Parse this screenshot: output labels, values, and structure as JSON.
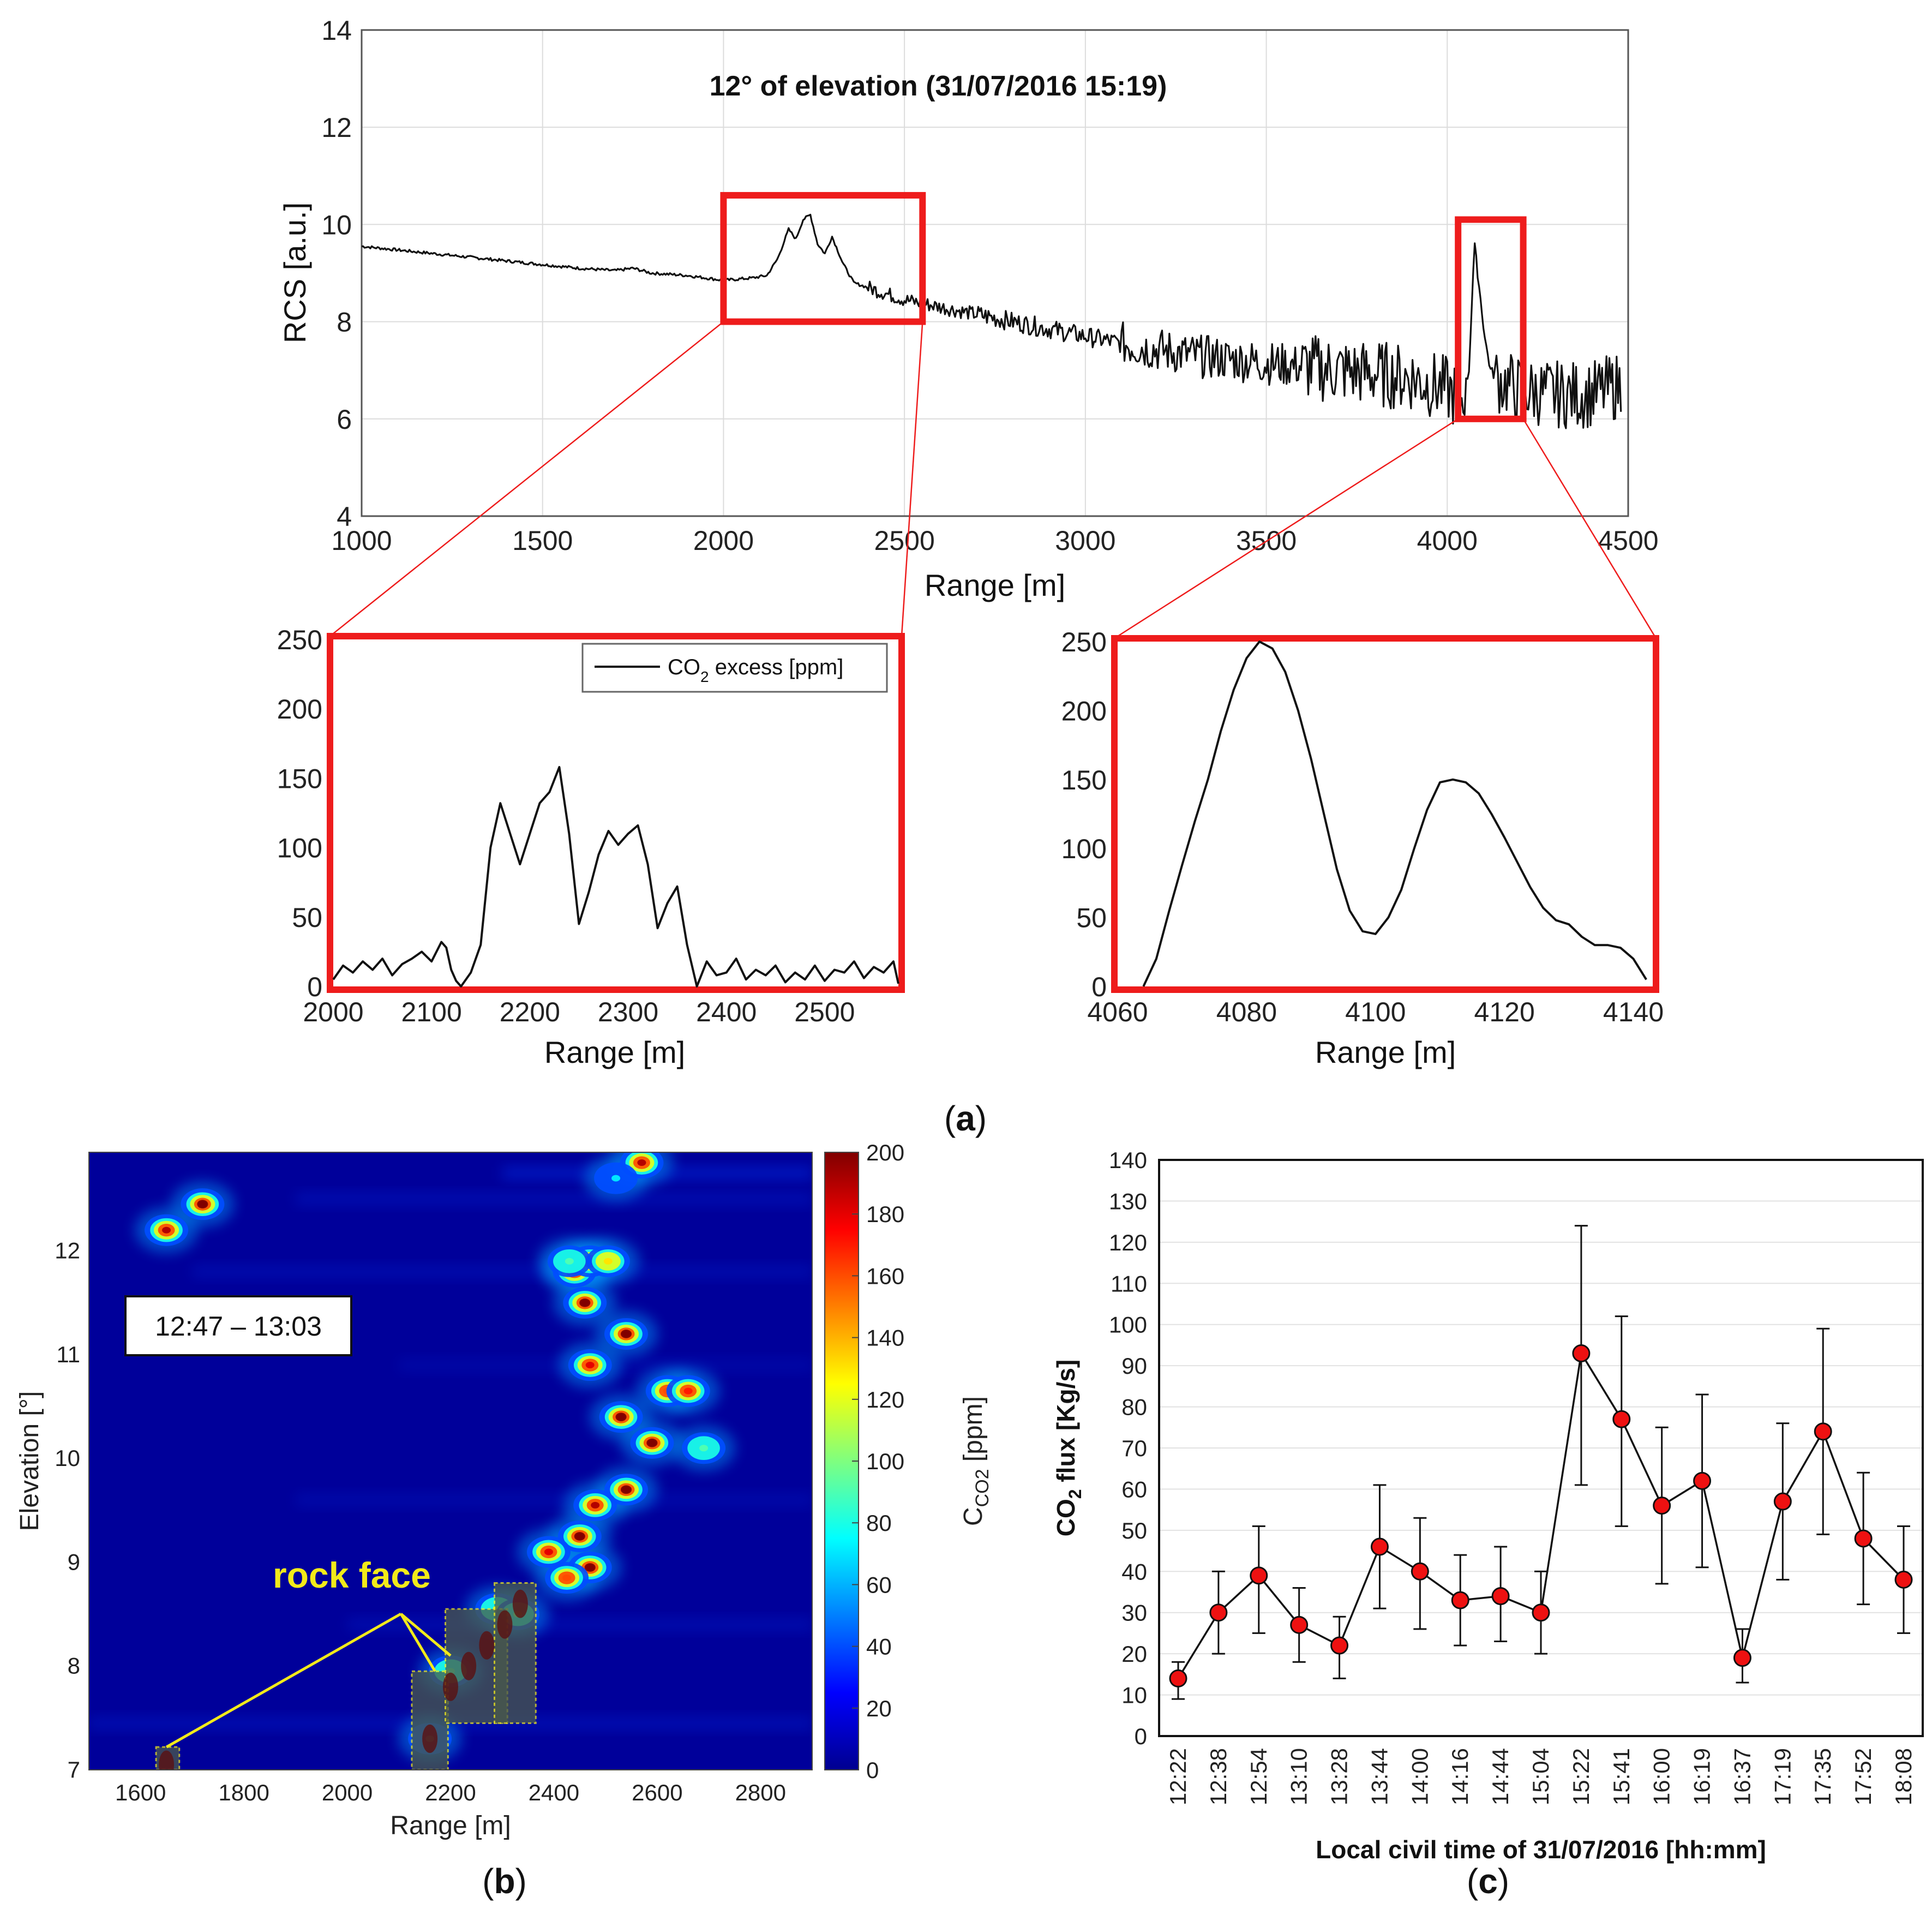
{
  "panel_labels": {
    "a": "(a)",
    "b": "(b)",
    "c": "(c)"
  },
  "colors": {
    "zoom_box": "#ee1c1c",
    "marker": "#ee1111",
    "trace": "#111111",
    "annotation": "#f2ea1a"
  },
  "chart_data": [
    {
      "id": "a-main",
      "type": "line",
      "title": "12° of elevation (31/07/2016 15:19)",
      "xlabel": "Range [m]",
      "ylabel": "RCS [a.u.]",
      "xlim": [
        1000,
        4500
      ],
      "ylim": [
        4,
        14
      ],
      "xticks": [
        1000,
        1500,
        2000,
        2500,
        3000,
        3500,
        4000,
        4500
      ],
      "yticks": [
        4,
        6,
        8,
        10,
        12,
        14
      ],
      "grid": true,
      "series": [
        {
          "x": [
            1000,
            1200,
            1400,
            1600,
            1700,
            1750,
            1800,
            1900,
            2000,
            2080,
            2120,
            2150,
            2180,
            2200,
            2220,
            2240,
            2260,
            2280,
            2300,
            2330,
            2360,
            2400,
            2500,
            2700,
            2900,
            3100,
            3300,
            3500,
            3700,
            3900,
            4000,
            4040,
            4060,
            4075,
            4090,
            4105,
            4120,
            4140,
            4200,
            4300,
            4400,
            4480
          ],
          "y": [
            9.55,
            9.4,
            9.25,
            9.1,
            9.05,
            9.1,
            9.0,
            8.95,
            8.85,
            8.9,
            8.95,
            9.3,
            9.9,
            9.7,
            10.1,
            10.2,
            9.6,
            9.4,
            9.75,
            9.2,
            8.8,
            8.7,
            8.45,
            8.15,
            7.85,
            7.55,
            7.3,
            7.15,
            7.0,
            6.85,
            6.6,
            6.4,
            7.0,
            9.6,
            8.6,
            7.6,
            7.0,
            6.8,
            6.6,
            6.5,
            6.5,
            6.7
          ]
        }
      ],
      "zoom_boxes": [
        {
          "x": [
            2000,
            2550
          ],
          "y": [
            8,
            10.6
          ]
        },
        {
          "x": [
            4030,
            4210
          ],
          "y": [
            6,
            10.1
          ]
        }
      ]
    },
    {
      "id": "a-zoom-left",
      "type": "line",
      "xlabel": "Range [m]",
      "ylabel": "",
      "xlim": [
        2000,
        2575
      ],
      "ylim": [
        0,
        250
      ],
      "xticks": [
        2000,
        2100,
        2200,
        2300,
        2400,
        2500
      ],
      "yticks": [
        0,
        50,
        100,
        150,
        200,
        250
      ],
      "legend": {
        "position": "top-right",
        "label": "CO",
        "subscript": "2",
        "label_rest": " excess [ppm]"
      },
      "series": [
        {
          "name": "CO2 excess [ppm]",
          "x": [
            2000,
            2010,
            2020,
            2030,
            2040,
            2050,
            2060,
            2070,
            2080,
            2090,
            2100,
            2110,
            2115,
            2120,
            2125,
            2130,
            2140,
            2150,
            2160,
            2170,
            2180,
            2190,
            2200,
            2210,
            2220,
            2230,
            2240,
            2250,
            2260,
            2270,
            2280,
            2290,
            2300,
            2310,
            2320,
            2330,
            2340,
            2350,
            2360,
            2370,
            2380,
            2390,
            2400,
            2410,
            2420,
            2430,
            2440,
            2450,
            2460,
            2470,
            2480,
            2490,
            2500,
            2510,
            2520,
            2530,
            2540,
            2550,
            2560,
            2570,
            2575
          ],
          "y": [
            5,
            15,
            10,
            18,
            12,
            20,
            8,
            16,
            20,
            25,
            18,
            32,
            28,
            12,
            4,
            0,
            10,
            30,
            100,
            132,
            110,
            88,
            110,
            132,
            140,
            158,
            110,
            45,
            68,
            95,
            112,
            102,
            110,
            116,
            88,
            42,
            60,
            72,
            30,
            0,
            18,
            8,
            10,
            20,
            5,
            12,
            8,
            15,
            3,
            10,
            5,
            15,
            4,
            12,
            10,
            18,
            6,
            14,
            10,
            18,
            2
          ]
        }
      ]
    },
    {
      "id": "a-zoom-right",
      "type": "line",
      "xlabel": "Range [m]",
      "ylabel": "",
      "xlim": [
        4060,
        4143
      ],
      "ylim": [
        0,
        250
      ],
      "xticks": [
        4060,
        4080,
        4100,
        4120,
        4140
      ],
      "yticks": [
        0,
        50,
        100,
        150,
        200,
        250
      ],
      "series": [
        {
          "x": [
            4064,
            4066,
            4068,
            4070,
            4072,
            4074,
            4076,
            4078,
            4080,
            4082,
            4084,
            4086,
            4088,
            4090,
            4092,
            4094,
            4096,
            4098,
            4100,
            4102,
            4104,
            4106,
            4108,
            4110,
            4112,
            4114,
            4116,
            4118,
            4120,
            4122,
            4124,
            4126,
            4128,
            4130,
            4132,
            4134,
            4136,
            4138,
            4140,
            4142
          ],
          "y": [
            0,
            20,
            55,
            88,
            120,
            150,
            185,
            215,
            238,
            250,
            245,
            228,
            200,
            165,
            125,
            85,
            55,
            40,
            38,
            50,
            70,
            100,
            128,
            148,
            150,
            148,
            140,
            125,
            108,
            90,
            72,
            57,
            48,
            45,
            36,
            30,
            30,
            28,
            20,
            5
          ]
        }
      ]
    },
    {
      "id": "b",
      "type": "heatmap",
      "xlabel": "Range [m]",
      "ylabel": "Elevation [°]",
      "xlim": [
        1500,
        2900
      ],
      "ylim": [
        7,
        12.95
      ],
      "xticks": [
        1600,
        1800,
        2000,
        2200,
        2400,
        2600,
        2800
      ],
      "yticks": [
        7,
        8,
        9,
        10,
        11,
        12
      ],
      "colorbar": {
        "label": "C",
        "label_sub": "CO2",
        "label_rest": " [ppm]",
        "range": [
          0,
          200
        ],
        "ticks": [
          0,
          20,
          40,
          60,
          80,
          100,
          120,
          140,
          160,
          180,
          200
        ]
      },
      "time_label": "12:47 – 13:03",
      "annotation": "rock face",
      "hotspots": [
        {
          "x": 1650,
          "y": 12.2,
          "v": 190
        },
        {
          "x": 1720,
          "y": 12.45,
          "v": 200
        },
        {
          "x": 2440,
          "y": 11.8,
          "v": 170
        },
        {
          "x": 2460,
          "y": 11.5,
          "v": 200
        },
        {
          "x": 2470,
          "y": 11.9,
          "v": 180
        },
        {
          "x": 2505,
          "y": 11.9,
          "v": 130
        },
        {
          "x": 2540,
          "y": 11.2,
          "v": 200
        },
        {
          "x": 2470,
          "y": 10.9,
          "v": 180
        },
        {
          "x": 2620,
          "y": 10.65,
          "v": 160
        },
        {
          "x": 2660,
          "y": 10.65,
          "v": 170
        },
        {
          "x": 2530,
          "y": 10.4,
          "v": 200
        },
        {
          "x": 2590,
          "y": 10.15,
          "v": 200
        },
        {
          "x": 2540,
          "y": 9.7,
          "v": 200
        },
        {
          "x": 2480,
          "y": 9.55,
          "v": 190
        },
        {
          "x": 2450,
          "y": 9.25,
          "v": 200
        },
        {
          "x": 2470,
          "y": 8.95,
          "v": 200
        },
        {
          "x": 2390,
          "y": 9.1,
          "v": 180
        },
        {
          "x": 2425,
          "y": 8.85,
          "v": 160
        },
        {
          "x": 2570,
          "y": 12.85,
          "v": 190
        },
        {
          "x": 2690,
          "y": 10.1,
          "v": 90
        },
        {
          "x": 2290,
          "y": 8.55,
          "v": 110
        },
        {
          "x": 2200,
          "y": 7.95,
          "v": 90
        },
        {
          "x": 2160,
          "y": 7.3,
          "v": 70
        },
        {
          "x": 2330,
          "y": 8.5,
          "v": 100
        },
        {
          "x": 2430,
          "y": 11.9,
          "v": 90
        },
        {
          "x": 2520,
          "y": 12.7,
          "v": 70
        }
      ],
      "rock_face_boxes": [
        {
          "x": [
            1630,
            1675
          ],
          "y": [
            7,
            7.22
          ]
        },
        {
          "x": [
            2125,
            2195
          ],
          "y": [
            7,
            7.95
          ]
        },
        {
          "x": [
            2190,
            2310
          ],
          "y": [
            7.45,
            8.55
          ]
        },
        {
          "x": [
            2285,
            2365
          ],
          "y": [
            7.45,
            8.8
          ]
        }
      ]
    },
    {
      "id": "c",
      "type": "line",
      "xlabel": "Local civil time of 31/07/2016 [hh:mm]",
      "ylabel": "CO",
      "ylabel_sub": "2",
      "ylabel_rest": " flux [Kg/s]",
      "ylim": [
        0,
        140
      ],
      "yticks": [
        0,
        10,
        20,
        30,
        40,
        50,
        60,
        70,
        80,
        90,
        100,
        110,
        120,
        130,
        140
      ],
      "grid": true,
      "categories": [
        "12:22",
        "12:38",
        "12:54",
        "13:10",
        "13:28",
        "13:44",
        "14:00",
        "14:16",
        "14:44",
        "15:04",
        "15:22",
        "15:41",
        "16:00",
        "16:19",
        "16:37",
        "17:19",
        "17:35",
        "17:52",
        "18:08"
      ],
      "values": [
        14,
        30,
        39,
        27,
        22,
        46,
        40,
        33,
        34,
        30,
        93,
        77,
        56,
        62,
        19,
        57,
        74,
        48,
        38
      ],
      "err_low": [
        9,
        20,
        25,
        18,
        14,
        31,
        26,
        22,
        23,
        20,
        61,
        51,
        37,
        41,
        13,
        38,
        49,
        32,
        25
      ],
      "err_high": [
        18,
        40,
        51,
        36,
        29,
        61,
        53,
        44,
        46,
        40,
        124,
        102,
        75,
        83,
        26,
        76,
        99,
        64,
        51
      ]
    }
  ]
}
